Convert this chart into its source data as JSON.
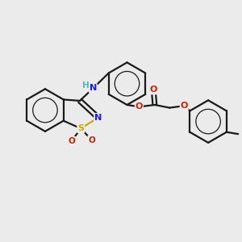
{
  "background_color": "#ebebeb",
  "bond_color": "#1a1a1a",
  "atom_colors": {
    "N": "#1a1aff",
    "NH": "#1a1aff",
    "H": "#4db8b8",
    "S": "#ccaa00",
    "O": "#cc2200",
    "C": "#1a1a1a"
  },
  "figsize": [
    3.0,
    3.0
  ],
  "dpi": 100,
  "xlim": [
    0,
    10
  ],
  "ylim": [
    0,
    10
  ]
}
